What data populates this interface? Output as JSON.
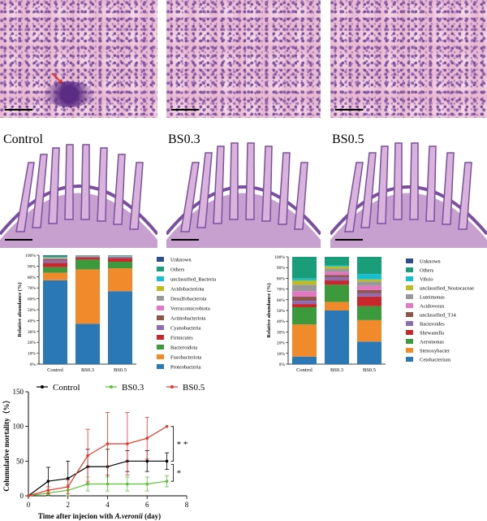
{
  "panels": {
    "top_labels": [
      "Control",
      "BS0.3",
      "BS0.5"
    ]
  },
  "chart_data": [
    {
      "type": "bar",
      "stacked": true,
      "ylabel": "Relative abundance (%)",
      "yticks": [
        "0%",
        "10%",
        "20%",
        "30%",
        "40%",
        "50%",
        "60%",
        "70%",
        "80%",
        "90%",
        "100%"
      ],
      "ylim": [
        0,
        100
      ],
      "categories": [
        "Control",
        "BS0.3",
        "BS0.5"
      ],
      "series": [
        {
          "name": "Proteobacteria",
          "color": "#2a78b5",
          "values": [
            77,
            37,
            67
          ]
        },
        {
          "name": "Fusobacteriota",
          "color": "#f08a2a",
          "values": [
            7,
            50,
            21
          ]
        },
        {
          "name": "Bacteroidota",
          "color": "#3c9a3c",
          "values": [
            5,
            9,
            6
          ]
        },
        {
          "name": "Firmicutes",
          "color": "#c8282a",
          "values": [
            4,
            2,
            3
          ]
        },
        {
          "name": "Cyanobacteria",
          "color": "#8e6bb5",
          "values": [
            2,
            0.5,
            1
          ]
        },
        {
          "name": "Actinobacteriota",
          "color": "#8c564b",
          "values": [
            1.5,
            0.3,
            0.5
          ]
        },
        {
          "name": "Verrucomicrobiota",
          "color": "#e377c2",
          "values": [
            0.5,
            0.2,
            0.3
          ]
        },
        {
          "name": "Desulfobacterota",
          "color": "#999999",
          "values": [
            0.5,
            0.2,
            0.2
          ]
        },
        {
          "name": "Acidobacteriota",
          "color": "#bcbd22",
          "values": [
            0.5,
            0.2,
            0.2
          ]
        },
        {
          "name": "unclassified_Bacteria",
          "color": "#17becf",
          "values": [
            0.5,
            0.2,
            0.3
          ]
        },
        {
          "name": "Others",
          "color": "#1a9e7a",
          "values": [
            1,
            0.3,
            0.4
          ]
        },
        {
          "name": "Unknown",
          "color": "#2f4e8c",
          "values": [
            0.5,
            0.1,
            0.1
          ]
        }
      ]
    },
    {
      "type": "bar",
      "stacked": true,
      "ylabel": "Relative abundance (%)",
      "yticks": [
        "0%",
        "10%",
        "20%",
        "30%",
        "40%",
        "50%",
        "60%",
        "70%",
        "80%",
        "90%",
        "100%"
      ],
      "ylim": [
        0,
        100
      ],
      "categories": [
        "Control",
        "BS0.3",
        "BS0.5"
      ],
      "series": [
        {
          "name": "Cetobacterium",
          "color": "#2a78b5",
          "values": [
            7,
            50,
            21
          ]
        },
        {
          "name": "Stenoxybacter",
          "color": "#f08a2a",
          "values": [
            30,
            8,
            20
          ]
        },
        {
          "name": "Aeromonas",
          "color": "#3c9a3c",
          "values": [
            16,
            16,
            13
          ]
        },
        {
          "name": "Shewanella",
          "color": "#c8282a",
          "values": [
            3,
            4,
            9
          ]
        },
        {
          "name": "Bacteroides",
          "color": "#8e6bb5",
          "values": [
            3,
            3,
            3
          ]
        },
        {
          "name": "unclassified_T34",
          "color": "#8c564b",
          "values": [
            4,
            2,
            3
          ]
        },
        {
          "name": "Acidovorax",
          "color": "#e377c2",
          "values": [
            5,
            3,
            4
          ]
        },
        {
          "name": "Luteimonas",
          "color": "#999999",
          "values": [
            6,
            3,
            4
          ]
        },
        {
          "name": "unclassified_Nostocaceae",
          "color": "#bcbd22",
          "values": [
            4,
            2,
            2
          ]
        },
        {
          "name": "Vibrio",
          "color": "#17becf",
          "values": [
            2,
            1,
            5
          ]
        },
        {
          "name": "Others",
          "color": "#1a9e7a",
          "values": [
            20,
            8,
            16
          ]
        },
        {
          "name": "Unknown",
          "color": "#2f4e8c",
          "values": [
            0,
            0,
            0
          ]
        }
      ]
    },
    {
      "type": "line",
      "xlabel_prefix": "Time after injecion with ",
      "xlabel_italic": "A.veronii",
      "xlabel_suffix": " (day)",
      "ylabel": "Columulative mortality（%）",
      "xlim": [
        0,
        8
      ],
      "ylim": [
        0,
        150
      ],
      "xticks": [
        0,
        2,
        4,
        6,
        8
      ],
      "yticks": [
        0,
        50,
        100,
        150
      ],
      "series": [
        {
          "name": "Control",
          "color": "#000000",
          "x": [
            0,
            1,
            2,
            3,
            4,
            5,
            6,
            7
          ],
          "y": [
            0,
            21,
            25,
            42,
            42,
            50,
            50,
            50
          ],
          "err": [
            0,
            20,
            25,
            25,
            25,
            15,
            15,
            12
          ]
        },
        {
          "name": "BS0.3",
          "color": "#5bc236",
          "x": [
            0,
            1,
            2,
            3,
            4,
            5,
            6,
            7
          ],
          "y": [
            0,
            4,
            8,
            17,
            17,
            17,
            17,
            21
          ],
          "err": [
            0,
            4,
            8,
            10,
            10,
            10,
            10,
            8
          ]
        },
        {
          "name": "BS0.5",
          "color": "#e8352a",
          "x": [
            0,
            1,
            2,
            3,
            4,
            5,
            6,
            7
          ],
          "y": [
            0,
            8,
            13,
            58,
            75,
            75,
            83,
            100
          ],
          "err": [
            0,
            5,
            10,
            38,
            45,
            45,
            30,
            0
          ]
        }
      ],
      "annotations": [
        "* *",
        "*"
      ]
    }
  ]
}
